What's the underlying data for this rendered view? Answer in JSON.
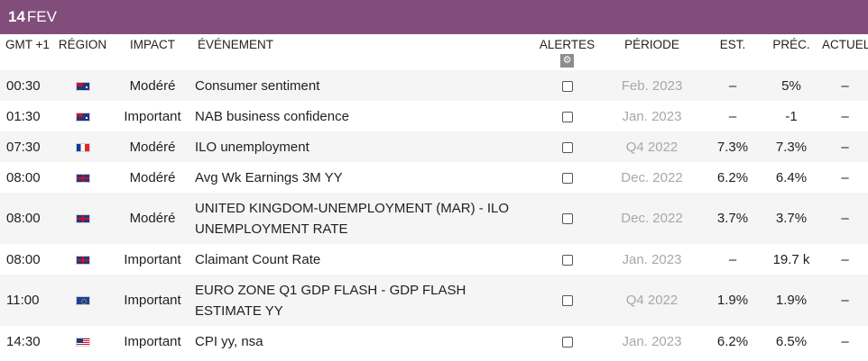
{
  "date_bar": {
    "day": "14",
    "month": "FEV"
  },
  "headers": {
    "time": "GMT +1",
    "region": "RÉGION",
    "impact": "IMPACT",
    "event": "ÉVÉNEMENT",
    "alerts": "ALERTES",
    "period": "PÉRIODE",
    "est": "EST.",
    "prev": "PRÉC.",
    "actual": "ACTUEL"
  },
  "icons": {
    "gear": "gear-icon"
  },
  "rows": [
    {
      "time": "00:30",
      "flag": "flag-au",
      "impact": "Modéré",
      "event": "Consumer sentiment",
      "period": "Feb. 2023",
      "est": "–",
      "prev": "5%",
      "actual": "–"
    },
    {
      "time": "01:30",
      "flag": "flag-au",
      "impact": "Important",
      "event": "NAB business confidence",
      "period": "Jan. 2023",
      "est": "–",
      "prev": "-1",
      "actual": "–"
    },
    {
      "time": "07:30",
      "flag": "flag-fr",
      "impact": "Modéré",
      "event": "ILO unemployment",
      "period": "Q4 2022",
      "est": "7.3%",
      "prev": "7.3%",
      "actual": "–"
    },
    {
      "time": "08:00",
      "flag": "flag-gb",
      "impact": "Modéré",
      "event": "Avg Wk Earnings 3M YY",
      "period": "Dec. 2022",
      "est": "6.2%",
      "prev": "6.4%",
      "actual": "–"
    },
    {
      "time": "08:00",
      "flag": "flag-gb",
      "impact": "Modéré",
      "event_line1": "UNITED KINGDOM-UNEMPLOYMENT (MAR) - ILO",
      "event_line2": "UNEMPLOYMENT RATE",
      "period": "Dec. 2022",
      "est": "3.7%",
      "prev": "3.7%",
      "actual": "–"
    },
    {
      "time": "08:00",
      "flag": "flag-gb",
      "impact": "Important",
      "event": "Claimant Count Rate",
      "period": "Jan. 2023",
      "est": "–",
      "prev": "19.7 k",
      "actual": "–"
    },
    {
      "time": "11:00",
      "flag": "flag-eu",
      "impact": "Important",
      "event_line1": "EURO ZONE Q1 GDP FLASH - GDP FLASH",
      "event_line2": "ESTIMATE YY",
      "period": "Q4 2022",
      "est": "1.9%",
      "prev": "1.9%",
      "actual": "–"
    },
    {
      "time": "14:30",
      "flag": "flag-us",
      "impact": "Important",
      "event": "CPI yy, nsa",
      "period": "Jan. 2023",
      "est": "6.2%",
      "prev": "6.5%",
      "actual": "–"
    }
  ]
}
